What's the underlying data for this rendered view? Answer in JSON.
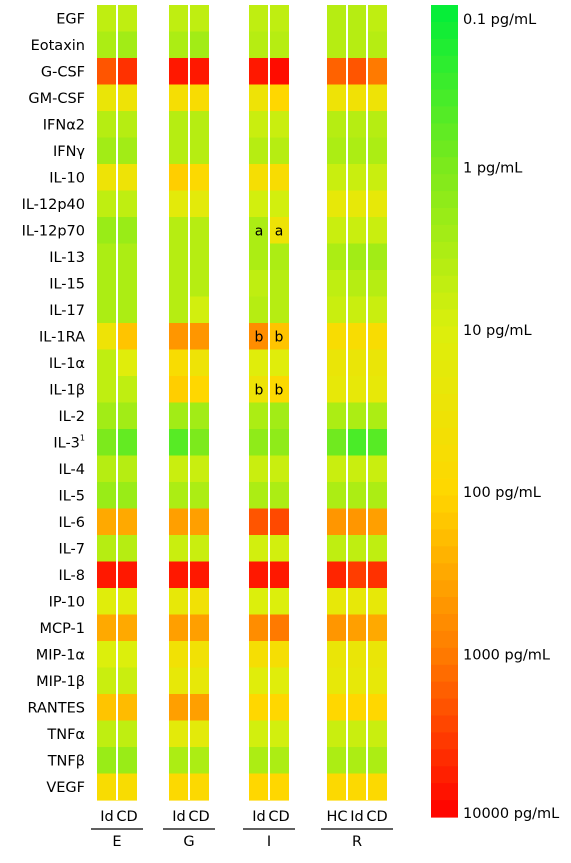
{
  "chart_data": {
    "type": "heatmap",
    "rows": [
      "EGF",
      "Eotaxin",
      "G-CSF",
      "GM-CSF",
      "IFNα2",
      "IFNγ",
      "IL-10",
      "IL-12p40",
      "IL-12p70",
      "IL-13",
      "IL-15",
      "IL-17",
      "IL-1RA",
      "IL-1α",
      "IL-1β",
      "IL-2",
      "IL-3",
      "IL-4",
      "IL-5",
      "IL-6",
      "IL-7",
      "IL-8",
      "IP-10",
      "MCP-1",
      "MIP-1α",
      "MIP-1β",
      "RANTES",
      "TNFα",
      "TNFβ",
      "VEGF"
    ],
    "row_superscripts": {
      "IL-3": "1"
    },
    "groups": [
      {
        "name": "E",
        "columns": [
          "Id",
          "CD"
        ]
      },
      {
        "name": "G",
        "columns": [
          "Id",
          "CD"
        ]
      },
      {
        "name": "I",
        "columns": [
          "Id",
          "CD"
        ]
      },
      {
        "name": "R",
        "columns": [
          "HC",
          "Id",
          "CD"
        ]
      }
    ],
    "value_unit": "pg/mL",
    "log10_values": [
      [
        0.7,
        0.7,
        0.7,
        0.7,
        0.7,
        0.7,
        0.6,
        0.6,
        0.7
      ],
      [
        0.5,
        0.4,
        0.5,
        0.4,
        0.6,
        0.6,
        0.6,
        0.6,
        0.6
      ],
      [
        3.3,
        3.6,
        3.8,
        3.8,
        3.8,
        3.9,
        3.2,
        3.3,
        3.0
      ],
      [
        1.4,
        1.5,
        1.7,
        1.8,
        1.5,
        2.0,
        1.5,
        1.6,
        1.5
      ],
      [
        0.6,
        0.6,
        0.6,
        0.6,
        0.8,
        0.8,
        0.6,
        0.6,
        0.6
      ],
      [
        0.4,
        0.4,
        0.6,
        0.6,
        0.6,
        0.6,
        0.5,
        0.5,
        0.5
      ],
      [
        1.5,
        1.5,
        2.1,
        1.9,
        1.7,
        1.8,
        0.8,
        0.8,
        0.8
      ],
      [
        0.7,
        0.7,
        1.2,
        1.2,
        0.9,
        0.9,
        1.3,
        1.3,
        1.3
      ],
      [
        0.3,
        0.3,
        0.6,
        0.6,
        0.5,
        1.5,
        0.8,
        0.8,
        0.8
      ],
      [
        0.5,
        0.5,
        0.6,
        0.6,
        0.5,
        0.5,
        0.5,
        0.4,
        0.4
      ],
      [
        0.5,
        0.5,
        0.6,
        0.6,
        0.7,
        0.6,
        0.7,
        0.6,
        0.6
      ],
      [
        0.5,
        0.5,
        0.6,
        0.9,
        0.6,
        0.6,
        0.8,
        0.8,
        0.8
      ],
      [
        1.5,
        2.2,
        2.7,
        2.7,
        2.8,
        2.2,
        1.8,
        1.8,
        1.8
      ],
      [
        0.7,
        1.1,
        1.8,
        1.5,
        1.1,
        1.1,
        1.4,
        1.4,
        1.4
      ],
      [
        0.7,
        0.7,
        2.1,
        2.0,
        1.5,
        1.9,
        1.3,
        1.3,
        1.3
      ],
      [
        0.4,
        0.4,
        0.4,
        0.4,
        0.5,
        0.4,
        0.5,
        0.5,
        0.5
      ],
      [
        0.0,
        -0.2,
        -0.3,
        0.0,
        0.2,
        0.2,
        -0.1,
        -0.4,
        -0.3
      ],
      [
        0.6,
        0.6,
        0.8,
        0.8,
        0.8,
        0.8,
        0.8,
        0.8,
        0.8
      ],
      [
        0.3,
        0.3,
        0.5,
        0.5,
        0.5,
        0.5,
        0.5,
        0.5,
        0.5
      ],
      [
        2.5,
        2.5,
        2.6,
        2.6,
        3.3,
        3.4,
        2.7,
        2.7,
        2.6
      ],
      [
        0.6,
        0.6,
        0.8,
        0.8,
        0.9,
        0.9,
        0.7,
        0.7,
        0.7
      ],
      [
        3.8,
        3.8,
        3.8,
        3.8,
        3.8,
        3.8,
        3.7,
        3.5,
        3.6
      ],
      [
        1.1,
        1.1,
        1.3,
        1.6,
        1.0,
        1.0,
        1.3,
        1.3,
        1.3
      ],
      [
        2.5,
        2.5,
        2.6,
        2.6,
        2.8,
        3.0,
        2.7,
        2.6,
        2.5
      ],
      [
        1.0,
        1.0,
        1.6,
        1.6,
        1.7,
        1.7,
        1.4,
        1.4,
        1.4
      ],
      [
        0.8,
        0.8,
        1.3,
        1.3,
        1.1,
        1.1,
        1.3,
        1.3,
        1.3
      ],
      [
        2.2,
        2.3,
        2.6,
        2.6,
        2.0,
        2.0,
        2.0,
        2.0,
        2.0
      ],
      [
        0.7,
        0.7,
        1.2,
        1.2,
        0.9,
        0.9,
        0.8,
        0.8,
        0.8
      ],
      [
        0.3,
        0.3,
        0.5,
        0.5,
        0.5,
        0.5,
        0.5,
        0.5,
        0.5
      ],
      [
        1.8,
        1.8,
        1.9,
        1.9,
        2.0,
        2.0,
        1.9,
        1.9,
        1.9
      ]
    ],
    "cell_annotations": [
      {
        "row": "IL-12p70",
        "group": "I",
        "column": "Id",
        "text": "a"
      },
      {
        "row": "IL-12p70",
        "group": "I",
        "column": "CD",
        "text": "a"
      },
      {
        "row": "IL-1RA",
        "group": "I",
        "column": "Id",
        "text": "b"
      },
      {
        "row": "IL-1RA",
        "group": "I",
        "column": "CD",
        "text": "b"
      },
      {
        "row": "IL-1β",
        "group": "I",
        "column": "Id",
        "text": "b"
      },
      {
        "row": "IL-1β",
        "group": "I",
        "column": "CD",
        "text": "b"
      }
    ],
    "colorbar": {
      "min_value": 0.1,
      "max_value": 10000,
      "tick_labels": [
        "0.1 pg/mL",
        "1 pg/mL",
        "10 pg/mL",
        "100 pg/mL",
        "1000 pg/mL",
        "10000 pg/mL"
      ],
      "tick_values": [
        0.1,
        1,
        10,
        100,
        1000,
        10000
      ],
      "color_stops": [
        "#00ee3a",
        "#7cea1c",
        "#dcef0c",
        "#ffd700",
        "#ff7a00",
        "#ff0000"
      ]
    }
  }
}
